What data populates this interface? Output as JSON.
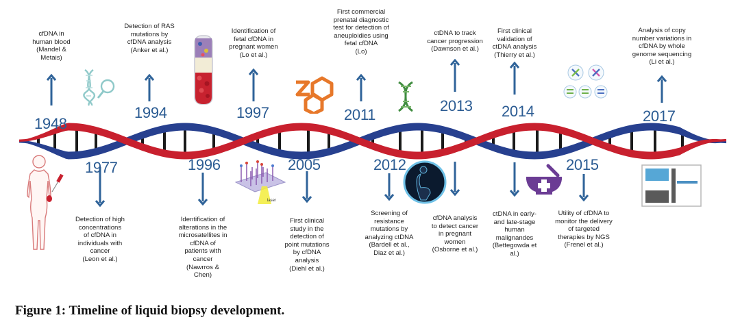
{
  "caption": "Figure 1: Timeline of liquid biopsy development.",
  "colors": {
    "helix_red": "#c8202e",
    "helix_blue": "#27408f",
    "year_blue": "#2c5c93",
    "arrow_blue": "#2f6399",
    "rung": "#1a1a1a"
  },
  "events": [
    {
      "year": "1948",
      "side": "above",
      "lines": [
        "cfDNA in",
        "human blood",
        "(Mandel &",
        "Metais)"
      ]
    },
    {
      "year": "1977",
      "side": "below",
      "lines": [
        "Detection of high",
        "concentrations",
        "of cfDNA in",
        "individuals with",
        "cancer",
        "(Leon et al.)"
      ]
    },
    {
      "year": "1994",
      "side": "above",
      "lines": [
        "Detection of RAS",
        "mutations by",
        "cfDNA analysis",
        "(Anker et al.)"
      ]
    },
    {
      "year": "1996",
      "side": "below",
      "lines": [
        "Identification of",
        "alterations in the",
        "microsatellites in",
        "cfDNA of",
        "patients with",
        "cancer",
        "(Nawrros &",
        "Chen)"
      ]
    },
    {
      "year": "1997",
      "side": "above",
      "lines": [
        "Identification of",
        "fetal cfDNA in",
        "pregnant women",
        "(Lo et al.)"
      ]
    },
    {
      "year": "2005",
      "side": "below",
      "lines": [
        "First clinical",
        "study in the",
        "detection of",
        "point mutations",
        "by cfDNA",
        "analysis",
        "(Diehl et al.)"
      ]
    },
    {
      "year": "2011",
      "side": "above",
      "lines": [
        "First commercial",
        "prenatal diagnostic",
        "test for detection of",
        "aneuploidies using",
        "fetal cfDNA",
        "(Lo)"
      ]
    },
    {
      "year": "2012",
      "side": "below",
      "lines": [
        "Screening of",
        "resistance",
        "mutations by",
        "analyzing ctDNA",
        "(Bardell et al.,",
        "Diaz et al.)"
      ]
    },
    {
      "year": "2013",
      "side": "above",
      "lines": [
        "ctDNA to track",
        "cancer progression",
        "(Dawnson et al.)"
      ]
    },
    {
      "year": "2013",
      "side": "below",
      "lines": [
        "cfDNA analysis",
        "to detect cancer",
        "in pregnant",
        "women",
        "(Osborne et al.)"
      ]
    },
    {
      "year": "2014",
      "side": "above",
      "lines": [
        "First clinical",
        "validation of",
        "ctDNA analysis",
        "(Thierry et al.)"
      ]
    },
    {
      "year": "2014",
      "side": "below",
      "lines": [
        "ctDNA in early-",
        "and late-stage",
        "human",
        "malignandes",
        "(Bettegowda et",
        "al.)"
      ]
    },
    {
      "year": "2015",
      "side": "below",
      "lines": [
        "Utility of cfDNA to",
        "monitor the delivery",
        "of targeted",
        "therapies by NGS",
        "(Frenel et al.)"
      ]
    },
    {
      "year": "2017",
      "side": "above",
      "lines": [
        "Analysis of copy",
        "number variations in",
        "cfDNA by whole",
        "genome sequencing",
        "(Li et al.)"
      ]
    }
  ],
  "years_shown": [
    "1948",
    "1977",
    "1994",
    "1996",
    "1997",
    "2005",
    "2011",
    "2012",
    "2013",
    "2014",
    "2015",
    "2017"
  ],
  "icons": [
    "dna-magnifier-icon",
    "blood-tube-icon",
    "woman-figure-icon",
    "microarray-laser-icon",
    "molecule-hexagon-icon",
    "dna-small-icon",
    "pregnant-silhouette-icon",
    "mortar-pestle-icon",
    "chromosome-cells-icon",
    "sequencing-blocks-icon"
  ]
}
